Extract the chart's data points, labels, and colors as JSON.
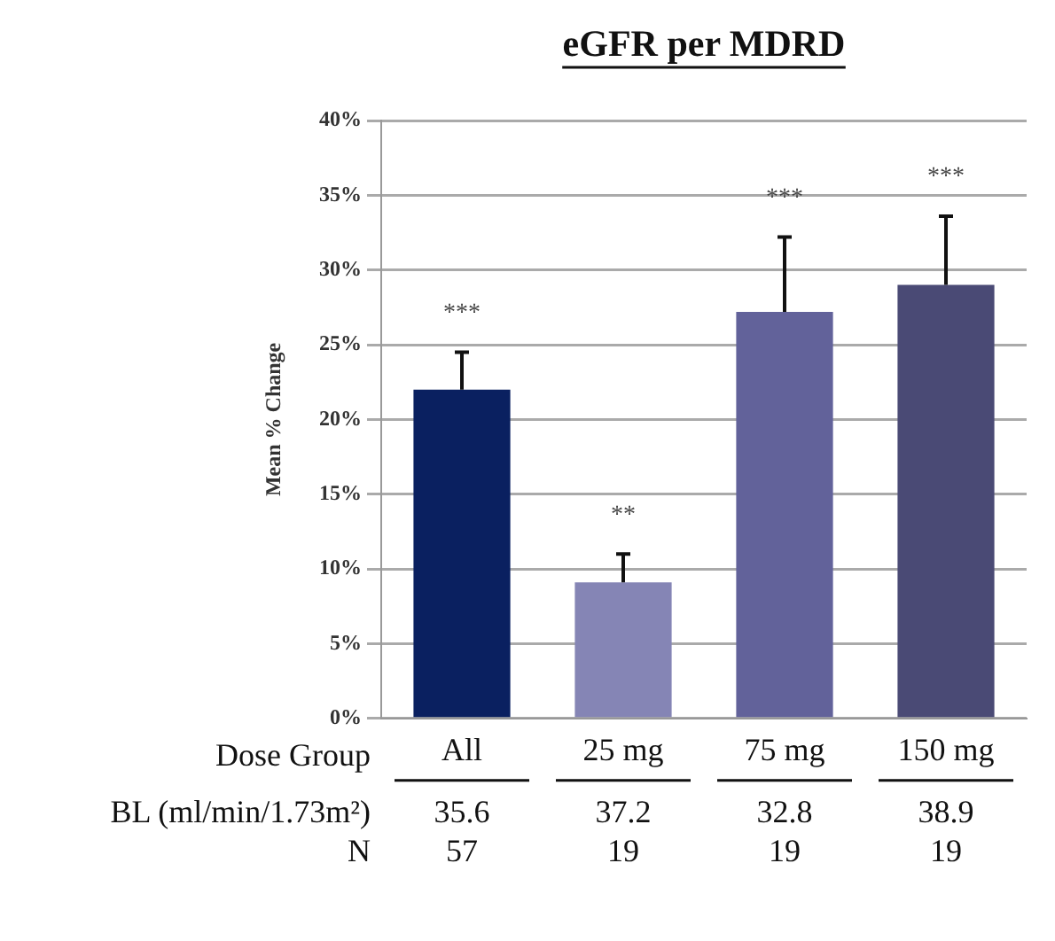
{
  "chart_data": {
    "type": "bar",
    "title": "eGFR per MDRD",
    "ylabel": "Mean % Change",
    "categories": [
      "All",
      "25 mg",
      "75 mg",
      "150 mg"
    ],
    "values": [
      22,
      9.1,
      27.2,
      29
    ],
    "errors": [
      [
        22,
        24.5
      ],
      [
        9.1,
        11
      ],
      [
        27.2,
        32.2
      ],
      [
        29,
        33.6
      ]
    ],
    "colors": [
      "#0a2060",
      "#8585b5",
      "#62629a",
      "#4a4a75"
    ],
    "ylim": [
      0,
      40
    ],
    "yticks": [
      {
        "value": 0,
        "label": "0%"
      },
      {
        "value": 5,
        "label": "5%"
      },
      {
        "value": 10,
        "label": "10%"
      },
      {
        "value": 15,
        "label": "15%"
      },
      {
        "value": 20,
        "label": "20%"
      },
      {
        "value": 25,
        "label": "25%"
      },
      {
        "value": 30,
        "label": "30%"
      },
      {
        "value": 35,
        "label": "35%"
      },
      {
        "value": 40,
        "label": "40%"
      }
    ],
    "grid": "y",
    "annotations": [
      "***",
      "**",
      "***",
      "***",
      "Dose Group",
      "BL (ml/min/1.73m²)",
      "N",
      "35.6",
      "37.2",
      "32.8",
      "38.9",
      "57",
      "19",
      "19",
      "19"
    ]
  }
}
